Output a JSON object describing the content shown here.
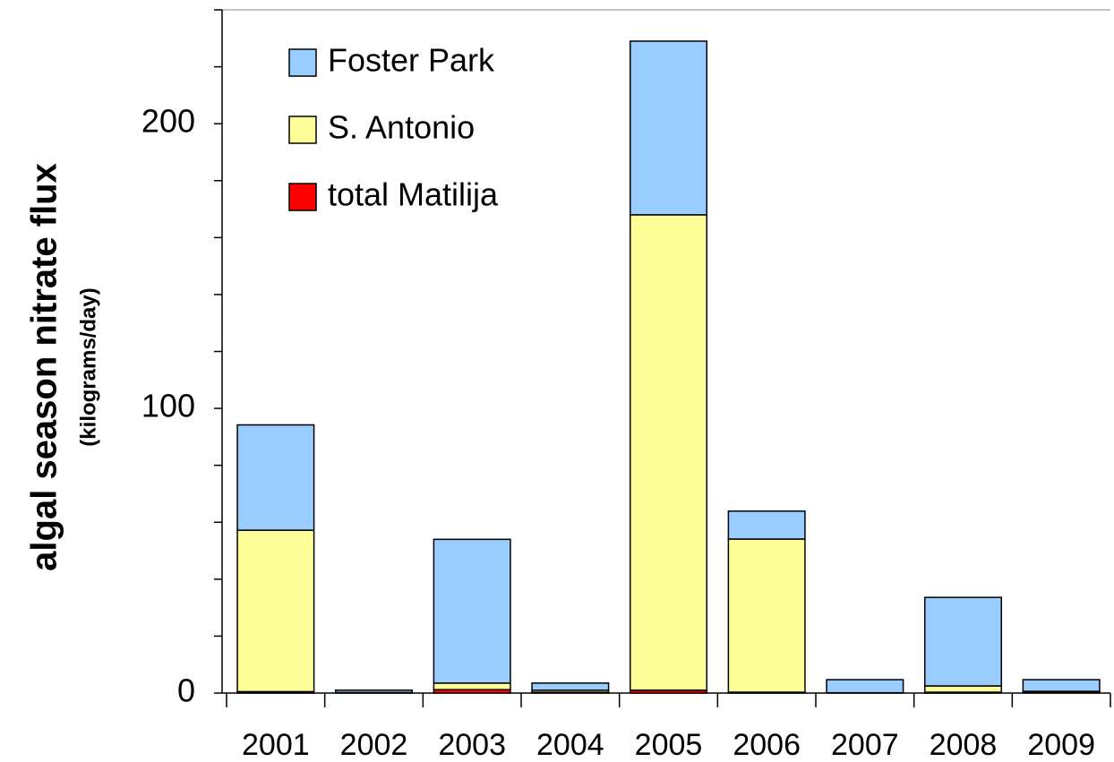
{
  "chart_data": {
    "type": "stacked_bar",
    "y_label": "algal season nitrate flux",
    "y_sublabel": "(kilograms/day)",
    "categories": [
      "2001",
      "2002",
      "2003",
      "2004",
      "2005",
      "2006",
      "2007",
      "2008",
      "2009"
    ],
    "series": [
      {
        "name": "Foster Park",
        "color": "#99ccff",
        "values": [
          37,
          0.8,
          50.5,
          2.5,
          61,
          9.8,
          4.6,
          31.1,
          4.1
        ]
      },
      {
        "name": "S. Antonio",
        "color": "#ffff99",
        "values": [
          56.7,
          0.2,
          2.3,
          0.7,
          167,
          53.8,
          0.1,
          2.2,
          0.1
        ]
      },
      {
        "name": "total Matilija",
        "color": "#ff0000",
        "values": [
          0.5,
          0,
          1.2,
          0.3,
          1,
          0.3,
          0,
          0.3,
          0.5
        ]
      }
    ],
    "ylim": [
      0,
      240
    ],
    "yticks": [
      0,
      100,
      200
    ],
    "yticks_minor": [
      20,
      40,
      60,
      80,
      120,
      140,
      160,
      180,
      220,
      240
    ],
    "legend": "top-left"
  }
}
